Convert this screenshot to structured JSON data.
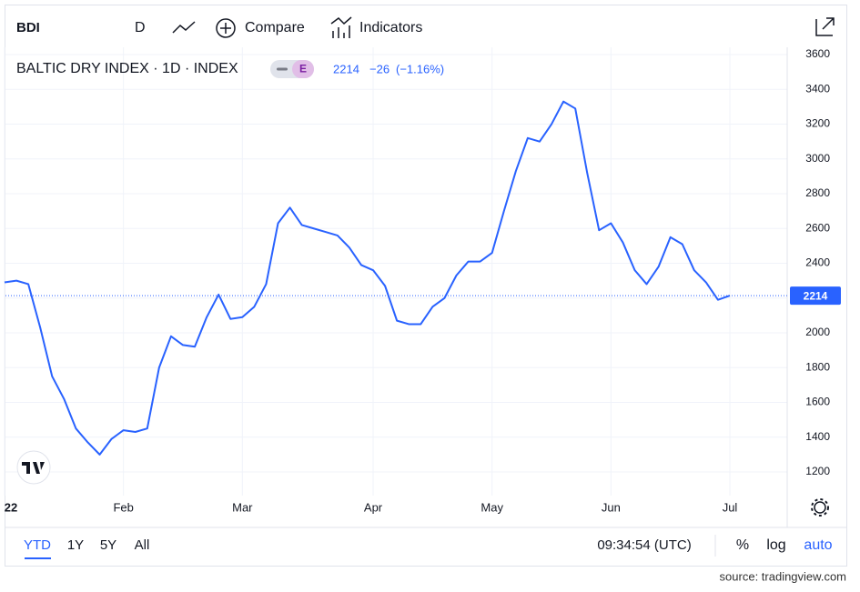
{
  "ui": {
    "symbol": "BDI",
    "interval": "D",
    "compare": "Compare",
    "indicators": "Indicators",
    "badge": "E",
    "quote": {
      "last": "2214",
      "change": "−26",
      "change_pct": "(−1.16%)"
    },
    "ranges": [
      "YTD",
      "1Y",
      "5Y",
      "All"
    ],
    "clock": "09:34:54 (UTC)",
    "percent": "%",
    "log": "log",
    "auto": "auto",
    "source": "source: tradingview.com"
  },
  "chart_data": {
    "type": "line",
    "title": "BALTIC DRY INDEX · 1D · INDEX",
    "categories": [
      "22",
      null,
      null,
      null,
      null,
      null,
      null,
      null,
      null,
      null,
      "Feb",
      null,
      null,
      null,
      null,
      null,
      null,
      null,
      null,
      null,
      "Mar",
      null,
      null,
      null,
      null,
      null,
      null,
      null,
      null,
      null,
      null,
      "Apr",
      null,
      null,
      null,
      null,
      null,
      null,
      null,
      null,
      null,
      "May",
      null,
      null,
      null,
      null,
      null,
      null,
      null,
      null,
      null,
      "Jun",
      null,
      null,
      null,
      null,
      null,
      null,
      null,
      null,
      null,
      "Jul"
    ],
    "series": [
      {
        "name": "BDI",
        "color": "#2962ff",
        "values": [
          2290,
          2300,
          2280,
          2030,
          1750,
          1620,
          1450,
          1370,
          1300,
          1390,
          1440,
          1430,
          1450,
          1800,
          1980,
          1930,
          1920,
          2090,
          2220,
          2080,
          2090,
          2150,
          2280,
          2630,
          2720,
          2620,
          2600,
          2580,
          2560,
          2490,
          2390,
          2360,
          2270,
          2070,
          2050,
          2050,
          2150,
          2200,
          2330,
          2410,
          2410,
          2460,
          2700,
          2930,
          3120,
          3100,
          3200,
          3330,
          3290,
          2920,
          2590,
          2630,
          2520,
          2360,
          2280,
          2380,
          2550,
          2510,
          2360,
          2290,
          2190,
          2214
        ]
      }
    ],
    "ylim": [
      1064,
      3642
    ],
    "yticks": [
      1200,
      1400,
      1600,
      1800,
      2000,
      2200,
      2400,
      2600,
      2800,
      3000,
      3200,
      3400,
      3600
    ],
    "grid": true
  }
}
